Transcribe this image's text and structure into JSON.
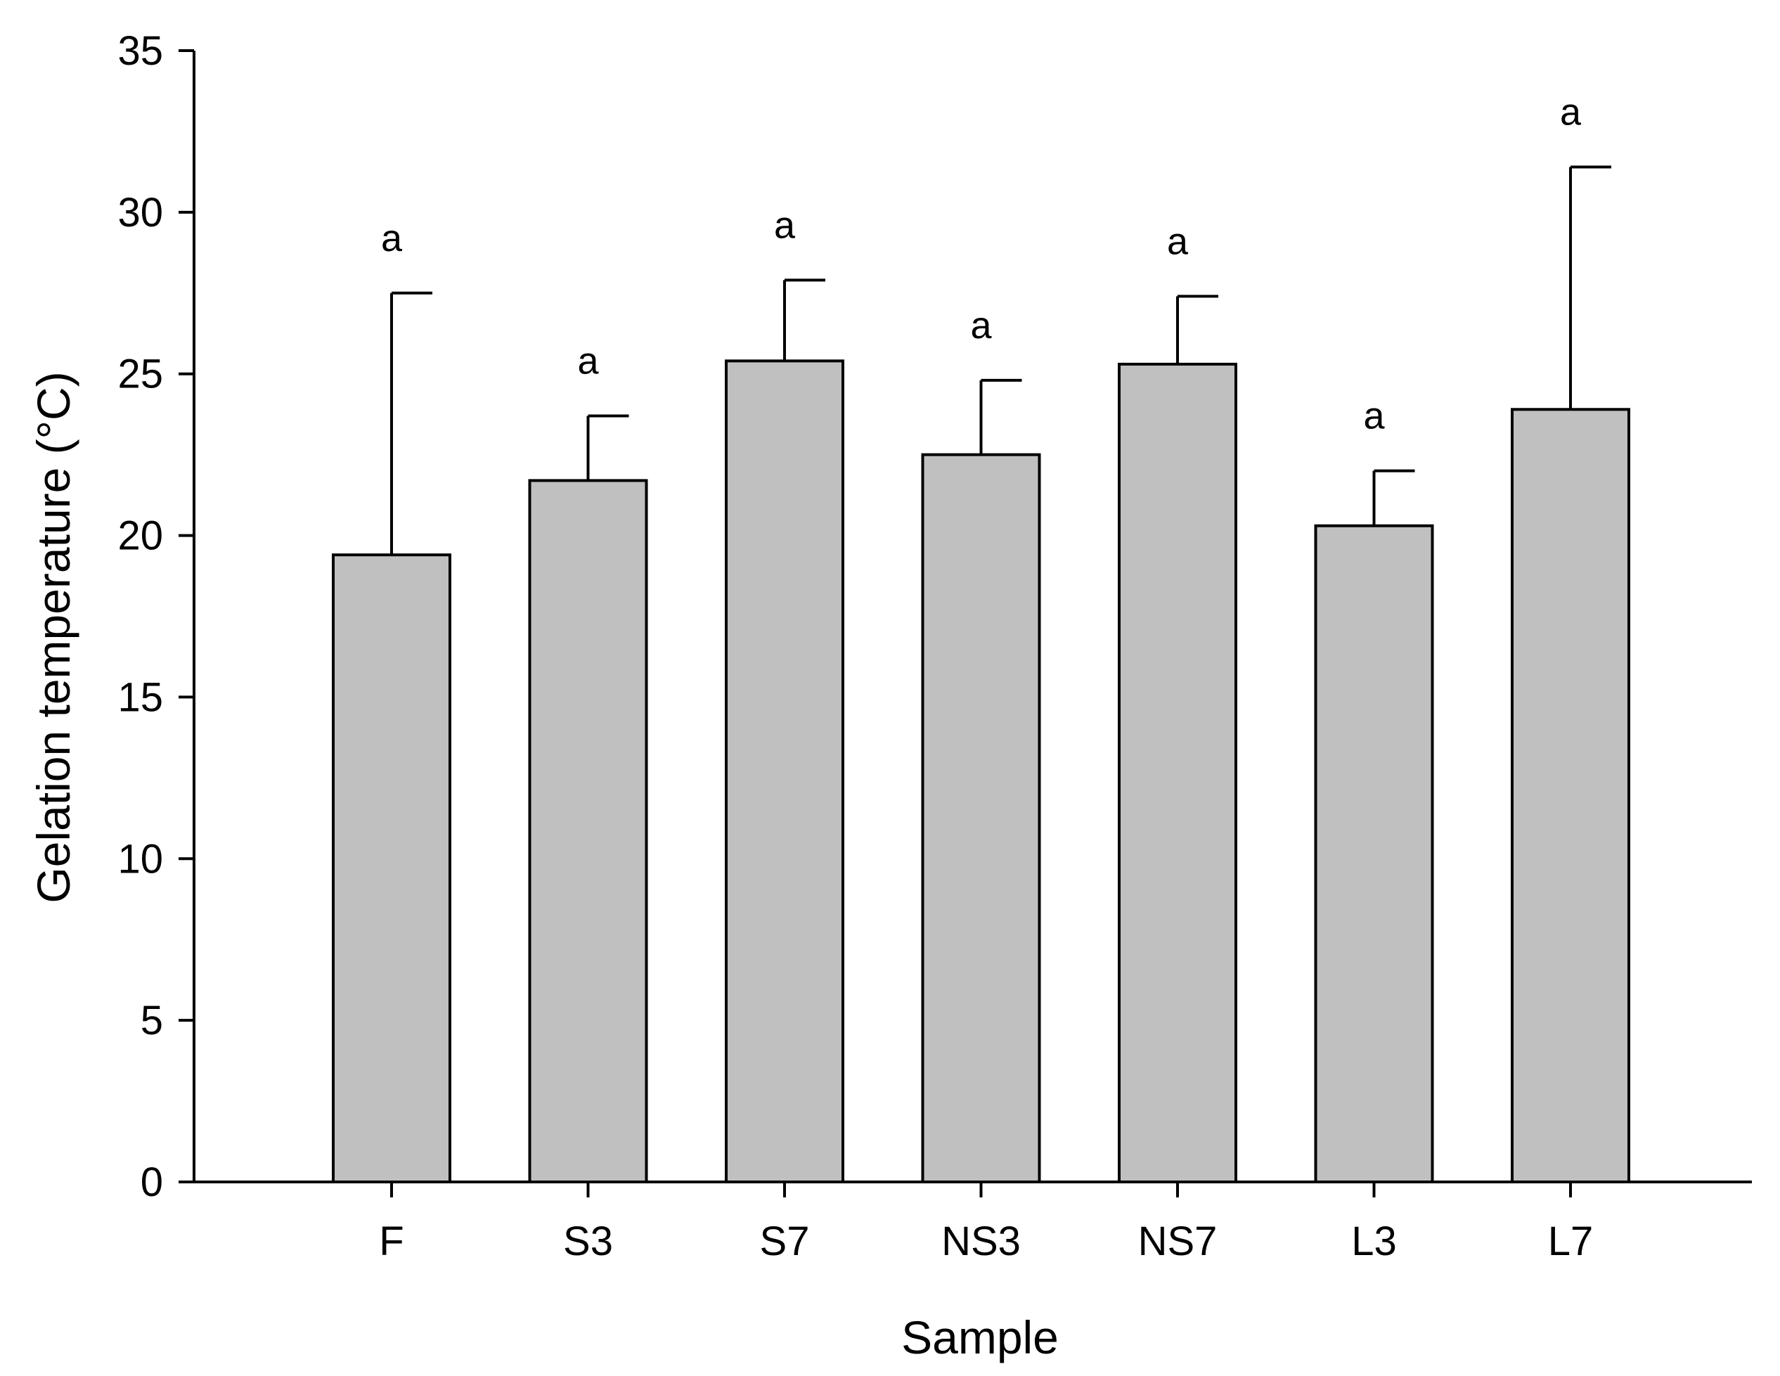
{
  "chart_data": {
    "type": "bar",
    "categories": [
      "F",
      "S3",
      "S7",
      "NS3",
      "NS7",
      "L3",
      "L7"
    ],
    "values": [
      19.4,
      21.7,
      25.4,
      22.5,
      25.3,
      20.3,
      23.9
    ],
    "error_upper": [
      27.5,
      23.7,
      27.9,
      24.8,
      27.4,
      22.0,
      31.4
    ],
    "significance_labels": [
      "a",
      "a",
      "a",
      "a",
      "a",
      "a",
      "a"
    ],
    "xlabel": "Sample",
    "ylabel": "Gelation temperature (°C)",
    "ylim": [
      0,
      35
    ],
    "yticks": [
      0,
      5,
      10,
      15,
      20,
      25,
      30,
      35
    ],
    "bar_color": "#c0c0c0",
    "grid": false,
    "legend": "none"
  }
}
